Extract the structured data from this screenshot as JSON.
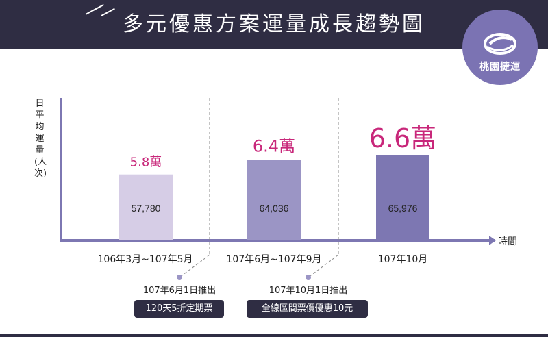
{
  "header": {
    "title": "多元優惠方案運量成長趨勢圖",
    "logo_text": "桃園捷運",
    "bg_color": "#2f2d43"
  },
  "chart_data": {
    "type": "bar",
    "title": "多元優惠方案運量成長趨勢圖",
    "ylabel": "日平均運量(人次)",
    "xlabel": "時間",
    "categories": [
      "106年3月~107年5月",
      "107年6月~107年9月",
      "107年10月"
    ],
    "values": [
      57780,
      64036,
      65976
    ],
    "value_labels": [
      "57,780",
      "64,036",
      "65,976"
    ],
    "highlight_labels": [
      "5.8萬",
      "6.4萬",
      "6.6萬"
    ],
    "bar_colors": [
      "#d6cde6",
      "#9b95c5",
      "#7d77b2"
    ],
    "highlight_color": "#c8277a",
    "ylim": [
      0,
      80000
    ],
    "grid": false,
    "annotations": [
      {
        "text": "107年6月1日推出",
        "badge": "120天5折定期票"
      },
      {
        "text": "107年10月1日推出",
        "badge": "全線區間票價優惠10元"
      }
    ]
  }
}
